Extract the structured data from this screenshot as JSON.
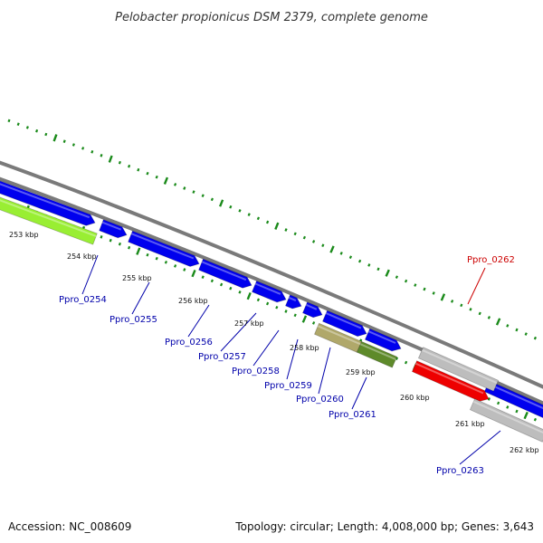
{
  "title": "Pelobacter propionicus DSM 2379, complete genome",
  "footer": {
    "accession": "Accession: NC_008609",
    "topology": "Topology: circular; Length: 4,008,000 bp; Genes: 3,643"
  },
  "colors": {
    "backbone": "#808080",
    "tick": "#1a8a1a",
    "forward_gene": "#0000ee",
    "reverse_gene": "#bdbdbd",
    "highlight_gene": "#ee0000",
    "lime_gene": "#99ee33",
    "khaki_gene": "#b0a86a",
    "olive_gene": "#5e8a2a",
    "label_blue": "#0000aa",
    "label_red": "#cc0000"
  },
  "kbp_labels": [
    "253 kbp",
    "254 kbp",
    "255 kbp",
    "256 kbp",
    "257 kbp",
    "258 kbp",
    "259 kbp",
    "260 kbp",
    "261 kbp",
    "262 kbp"
  ],
  "gene_labels": [
    "Ppro_0254",
    "Ppro_0255",
    "Ppro_0256",
    "Ppro_0257",
    "Ppro_0258",
    "Ppro_0259",
    "Ppro_0260",
    "Ppro_0261",
    "Ppro_0262",
    "Ppro_0263"
  ]
}
